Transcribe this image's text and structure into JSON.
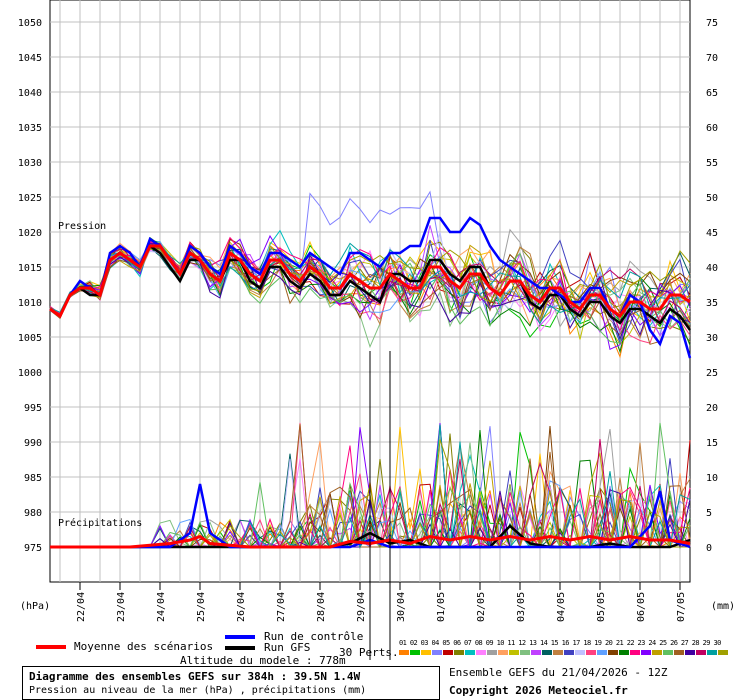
{
  "chart_data": {
    "type": "line",
    "pressure_axis": {
      "unit_label": "(hPa)",
      "min": 970,
      "max": 1050,
      "ticks": [
        975,
        980,
        985,
        990,
        995,
        1000,
        1005,
        1010,
        1015,
        1020,
        1025,
        1030,
        1035,
        1040,
        1045,
        1050
      ]
    },
    "precip_axis": {
      "unit_label": "(mm)",
      "min": -5,
      "max": 75,
      "ticks": [
        0,
        5,
        10,
        15,
        20,
        25,
        30,
        35,
        40,
        45,
        50,
        55,
        60,
        65,
        70,
        75
      ]
    },
    "x_dates": [
      "22/04",
      "23/04",
      "24/04",
      "25/04",
      "26/04",
      "27/04",
      "28/04",
      "29/04",
      "30/04",
      "01/05",
      "02/05",
      "03/05",
      "04/05",
      "05/05",
      "06/05",
      "07/05"
    ],
    "x_range_hours": [
      0,
      384
    ],
    "vertical_markers_hours": [
      192,
      204
    ],
    "grid": true,
    "labels": {
      "pressure": "Pression",
      "precip": "Précipitations"
    },
    "series": [
      {
        "name": "Moyenne des scénarios",
        "color": "#ff0000",
        "pressure": [
          [
            0,
            1009
          ],
          [
            6,
            1008
          ],
          [
            12,
            1011
          ],
          [
            18,
            1012
          ],
          [
            24,
            1012
          ],
          [
            30,
            1011
          ],
          [
            36,
            1016
          ],
          [
            42,
            1017
          ],
          [
            48,
            1016
          ],
          [
            54,
            1015
          ],
          [
            60,
            1018
          ],
          [
            66,
            1018
          ],
          [
            72,
            1016
          ],
          [
            78,
            1014
          ],
          [
            84,
            1017
          ],
          [
            90,
            1016
          ],
          [
            96,
            1014
          ],
          [
            102,
            1013
          ],
          [
            108,
            1017
          ],
          [
            114,
            1016
          ],
          [
            120,
            1014
          ],
          [
            126,
            1013
          ],
          [
            132,
            1016
          ],
          [
            138,
            1016
          ],
          [
            144,
            1014
          ],
          [
            150,
            1013
          ],
          [
            156,
            1015
          ],
          [
            162,
            1014
          ],
          [
            168,
            1012
          ],
          [
            174,
            1012
          ],
          [
            180,
            1014
          ],
          [
            186,
            1013
          ],
          [
            192,
            1012
          ],
          [
            198,
            1012
          ],
          [
            204,
            1014
          ],
          [
            210,
            1013
          ],
          [
            216,
            1012
          ],
          [
            222,
            1012
          ],
          [
            228,
            1015
          ],
          [
            234,
            1015
          ],
          [
            240,
            1013
          ],
          [
            246,
            1012
          ],
          [
            252,
            1014
          ],
          [
            258,
            1014
          ],
          [
            264,
            1012
          ],
          [
            270,
            1011
          ],
          [
            276,
            1013
          ],
          [
            282,
            1013
          ],
          [
            288,
            1011
          ],
          [
            294,
            1010
          ],
          [
            300,
            1012
          ],
          [
            306,
            1012
          ],
          [
            312,
            1010
          ],
          [
            318,
            1009
          ],
          [
            324,
            1011
          ],
          [
            330,
            1011
          ],
          [
            336,
            1009
          ],
          [
            342,
            1008
          ],
          [
            348,
            1010
          ],
          [
            354,
            1010
          ],
          [
            360,
            1009
          ],
          [
            366,
            1009
          ],
          [
            372,
            1011
          ],
          [
            378,
            1011
          ],
          [
            384,
            1010
          ]
        ],
        "precip": [
          [
            0,
            0
          ],
          [
            24,
            0
          ],
          [
            48,
            0
          ],
          [
            72,
            0.5
          ],
          [
            84,
            1
          ],
          [
            90,
            1.5
          ],
          [
            96,
            0.5
          ],
          [
            120,
            0
          ],
          [
            144,
            0
          ],
          [
            168,
            0
          ],
          [
            180,
            0.8
          ],
          [
            192,
            0.5
          ],
          [
            204,
            1
          ],
          [
            216,
            0.5
          ],
          [
            228,
            1.5
          ],
          [
            240,
            1
          ],
          [
            252,
            1.5
          ],
          [
            264,
            1
          ],
          [
            276,
            1.5
          ],
          [
            288,
            1
          ],
          [
            300,
            1.5
          ],
          [
            312,
            1
          ],
          [
            324,
            1.5
          ],
          [
            336,
            1
          ],
          [
            348,
            1.5
          ],
          [
            360,
            1
          ],
          [
            372,
            1
          ],
          [
            384,
            0.5
          ]
        ]
      },
      {
        "name": "Run de contrôle",
        "color": "#0000ff",
        "pressure": [
          [
            0,
            1009
          ],
          [
            6,
            1008
          ],
          [
            12,
            1011
          ],
          [
            18,
            1013
          ],
          [
            24,
            1012
          ],
          [
            30,
            1011
          ],
          [
            36,
            1017
          ],
          [
            42,
            1018
          ],
          [
            48,
            1017
          ],
          [
            54,
            1015
          ],
          [
            60,
            1019
          ],
          [
            66,
            1018
          ],
          [
            72,
            1016
          ],
          [
            78,
            1014
          ],
          [
            84,
            1018
          ],
          [
            90,
            1017
          ],
          [
            96,
            1015
          ],
          [
            102,
            1014
          ],
          [
            108,
            1018
          ],
          [
            114,
            1017
          ],
          [
            120,
            1015
          ],
          [
            126,
            1014
          ],
          [
            132,
            1017
          ],
          [
            138,
            1017
          ],
          [
            144,
            1016
          ],
          [
            150,
            1015
          ],
          [
            156,
            1017
          ],
          [
            162,
            1016
          ],
          [
            168,
            1015
          ],
          [
            174,
            1014
          ],
          [
            180,
            1017
          ],
          [
            186,
            1017
          ],
          [
            192,
            1016
          ],
          [
            198,
            1015
          ],
          [
            204,
            1017
          ],
          [
            210,
            1017
          ],
          [
            216,
            1018
          ],
          [
            222,
            1018
          ],
          [
            228,
            1022
          ],
          [
            234,
            1022
          ],
          [
            240,
            1020
          ],
          [
            246,
            1020
          ],
          [
            252,
            1022
          ],
          [
            258,
            1021
          ],
          [
            264,
            1018
          ],
          [
            270,
            1016
          ],
          [
            276,
            1015
          ],
          [
            282,
            1014
          ],
          [
            288,
            1013
          ],
          [
            294,
            1012
          ],
          [
            300,
            1012
          ],
          [
            306,
            1011
          ],
          [
            312,
            1010
          ],
          [
            318,
            1010
          ],
          [
            324,
            1012
          ],
          [
            330,
            1012
          ],
          [
            336,
            1009
          ],
          [
            342,
            1008
          ],
          [
            348,
            1011
          ],
          [
            354,
            1010
          ],
          [
            360,
            1006
          ],
          [
            366,
            1004
          ],
          [
            372,
            1008
          ],
          [
            378,
            1007
          ],
          [
            384,
            1002
          ]
        ],
        "precip": [
          [
            0,
            0
          ],
          [
            72,
            0
          ],
          [
            84,
            2
          ],
          [
            90,
            9
          ],
          [
            96,
            2
          ],
          [
            108,
            0
          ],
          [
            180,
            0
          ],
          [
            192,
            1
          ],
          [
            204,
            0
          ],
          [
            264,
            0
          ],
          [
            276,
            0
          ],
          [
            336,
            0
          ],
          [
            348,
            0
          ],
          [
            360,
            3
          ],
          [
            366,
            8
          ],
          [
            372,
            1
          ],
          [
            384,
            0
          ]
        ]
      },
      {
        "name": "Run GFS",
        "color": "#000000",
        "pressure": [
          [
            0,
            1009
          ],
          [
            6,
            1008
          ],
          [
            12,
            1011
          ],
          [
            18,
            1012
          ],
          [
            24,
            1011
          ],
          [
            30,
            1011
          ],
          [
            36,
            1016
          ],
          [
            42,
            1017
          ],
          [
            48,
            1016
          ],
          [
            54,
            1015
          ],
          [
            60,
            1018
          ],
          [
            66,
            1017
          ],
          [
            72,
            1015
          ],
          [
            78,
            1013
          ],
          [
            84,
            1016
          ],
          [
            90,
            1016
          ],
          [
            96,
            1014
          ],
          [
            102,
            1013
          ],
          [
            108,
            1016
          ],
          [
            114,
            1016
          ],
          [
            120,
            1013
          ],
          [
            126,
            1012
          ],
          [
            132,
            1015
          ],
          [
            138,
            1015
          ],
          [
            144,
            1013
          ],
          [
            150,
            1012
          ],
          [
            156,
            1014
          ],
          [
            162,
            1013
          ],
          [
            168,
            1011
          ],
          [
            174,
            1011
          ],
          [
            180,
            1013
          ],
          [
            186,
            1012
          ],
          [
            192,
            1011
          ],
          [
            198,
            1010
          ],
          [
            204,
            1014
          ],
          [
            210,
            1014
          ],
          [
            216,
            1013
          ],
          [
            222,
            1013
          ],
          [
            228,
            1016
          ],
          [
            234,
            1016
          ],
          [
            240,
            1014
          ],
          [
            246,
            1013
          ],
          [
            252,
            1015
          ],
          [
            258,
            1015
          ],
          [
            264,
            1012
          ],
          [
            270,
            1011
          ],
          [
            276,
            1013
          ],
          [
            282,
            1013
          ],
          [
            288,
            1010
          ],
          [
            294,
            1009
          ],
          [
            300,
            1011
          ],
          [
            306,
            1011
          ],
          [
            312,
            1009
          ],
          [
            318,
            1008
          ],
          [
            324,
            1010
          ],
          [
            330,
            1010
          ],
          [
            336,
            1008
          ],
          [
            342,
            1007
          ],
          [
            348,
            1009
          ],
          [
            354,
            1009
          ],
          [
            360,
            1008
          ],
          [
            366,
            1007
          ],
          [
            372,
            1009
          ],
          [
            378,
            1008
          ],
          [
            384,
            1006
          ]
        ],
        "precip": [
          [
            0,
            0
          ],
          [
            168,
            0
          ],
          [
            180,
            0.5
          ],
          [
            192,
            2
          ],
          [
            204,
            0.5
          ],
          [
            216,
            1
          ],
          [
            228,
            0
          ],
          [
            264,
            0
          ],
          [
            276,
            3
          ],
          [
            288,
            0.5
          ],
          [
            300,
            0
          ],
          [
            324,
            0
          ],
          [
            336,
            0.5
          ],
          [
            348,
            0
          ],
          [
            372,
            0
          ],
          [
            384,
            1
          ]
        ]
      }
    ],
    "perturbation_count": 30
  },
  "bottom": {
    "legend_mean": "Moyenne des scénarios",
    "legend_control": "Run de contrôle",
    "legend_gfs": "Run GFS",
    "altitude": "Altitude du modele : 778m",
    "perts_label": "30 Perts.",
    "pert_numbers": "01 02 03 04 05 06 07 08 09 10 11 12 13 14 15 16 17 18 19 20 21 22 23 24 25 26 27 28 29 30",
    "pert_colors": [
      "#ff8000",
      "#00c000",
      "#ffc000",
      "#8080ff",
      "#c00000",
      "#808000",
      "#00c0c0",
      "#ff80ff",
      "#a0a0a0",
      "#ffa060",
      "#c0c000",
      "#80c080",
      "#c040ff",
      "#006060",
      "#c08040",
      "#4040c0",
      "#c0c0ff",
      "#ff4080",
      "#60a0ff",
      "#804000",
      "#008000",
      "#ff0080",
      "#8000ff",
      "#c0a000",
      "#60c060",
      "#a06020",
      "#4000a0",
      "#c00060",
      "#00a0a0",
      "#a0a000"
    ],
    "info_title": "Diagramme des ensembles GEFS sur 384h : 39.5N 1.4W",
    "info_sub": "Pression au niveau de la mer (hPa) , précipitations (mm)",
    "run_info": "Ensemble GEFS du 21/04/2026 - 12Z",
    "copyright": "Copyright 2026 Meteociel.fr"
  }
}
